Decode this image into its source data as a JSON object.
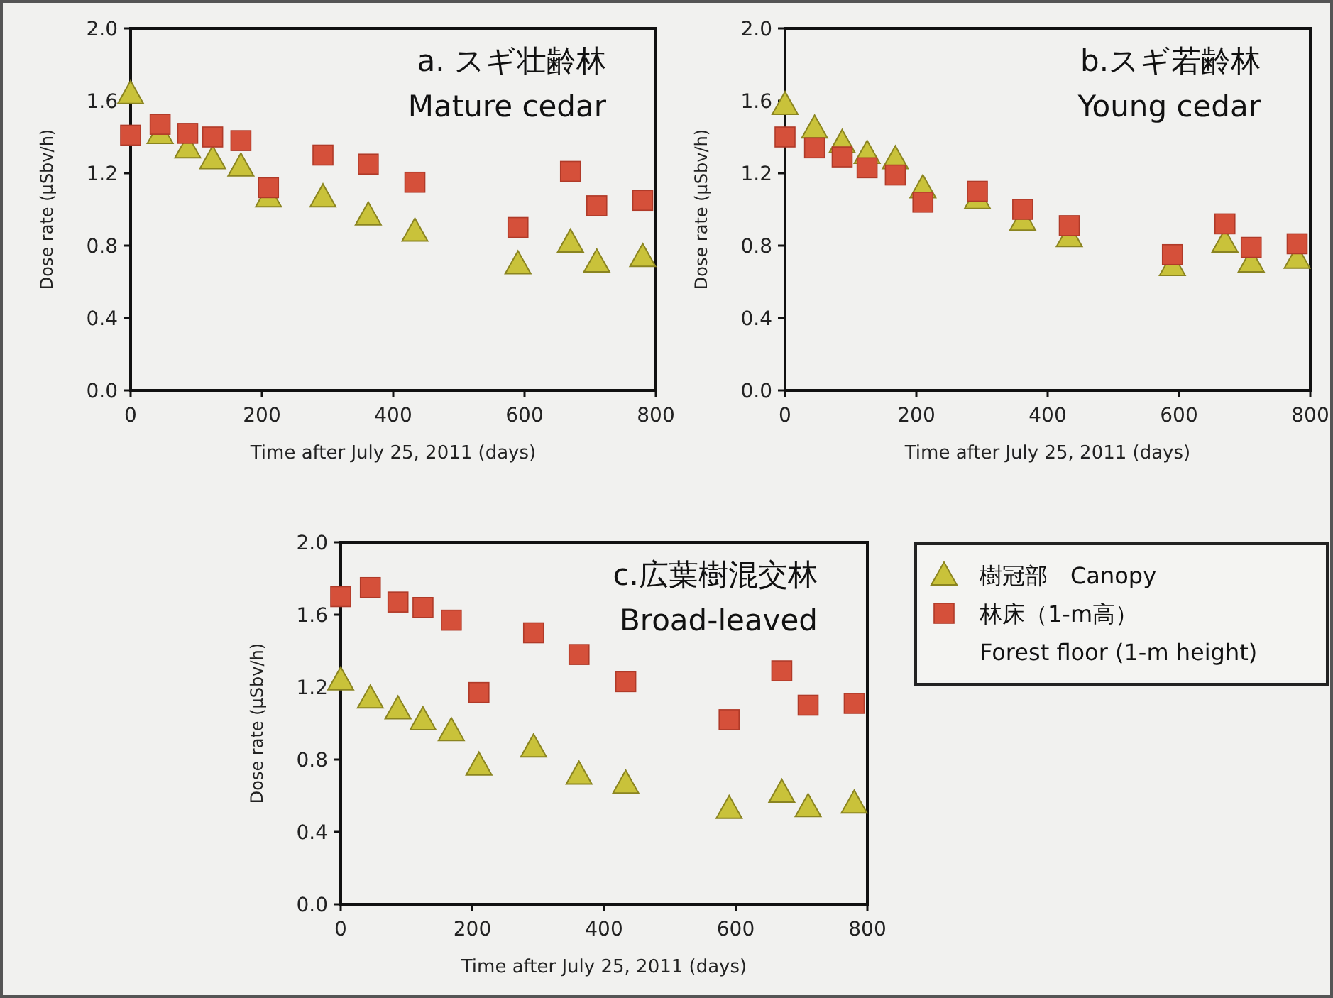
{
  "chart_data": [
    {
      "type": "scatter",
      "title": "a. スギ壮齢林",
      "subtitle": "Mature cedar",
      "xlabel": "Time after July 25, 2011 (days)",
      "ylabel": "Dose rate (µSbv/h)",
      "x": [
        0,
        45,
        87,
        125,
        168,
        210,
        293,
        362,
        433,
        590,
        670,
        710,
        780
      ],
      "xlim": [
        0,
        800
      ],
      "xticks": [
        0,
        200,
        400,
        600,
        800
      ],
      "ylim": [
        0,
        2.0
      ],
      "yticks": [
        {
          "value": 0,
          "label": "0.0"
        },
        {
          "value": 0.4,
          "label": "0.4"
        },
        {
          "value": 0.8,
          "label": "0.8"
        },
        {
          "value": 1.2,
          "label": "1.2"
        },
        {
          "value": 1.6,
          "label": "1.6"
        },
        {
          "value": 2.0,
          "label": "2.0"
        }
      ],
      "series": [
        {
          "color": "#c9c23a",
          "marker": "triangle",
          "values": [
            1.64,
            1.42,
            1.34,
            1.28,
            1.24,
            1.07,
            1.07,
            0.97,
            0.88,
            0.7,
            0.82,
            0.71,
            0.74
          ]
        },
        {
          "color": "#d5503a",
          "marker": "square",
          "values": [
            1.41,
            1.47,
            1.42,
            1.4,
            1.38,
            1.12,
            1.3,
            1.25,
            1.15,
            0.9,
            1.21,
            1.02,
            1.05
          ]
        }
      ]
    },
    {
      "type": "scatter",
      "title": "b.スギ若齢林",
      "subtitle": "Young cedar",
      "xlabel": "Time after July 25, 2011 (days)",
      "ylabel": "Dose rate (µSbv/h)",
      "x": [
        0,
        45,
        87,
        125,
        168,
        210,
        293,
        362,
        433,
        590,
        670,
        710,
        780
      ],
      "xlim": [
        0,
        800
      ],
      "xticks": [
        0,
        200,
        400,
        600,
        800
      ],
      "ylim": [
        0,
        2.0
      ],
      "yticks": [
        {
          "value": 0,
          "label": "0.0"
        },
        {
          "value": 0.4,
          "label": "0.4"
        },
        {
          "value": 0.8,
          "label": "0.8"
        },
        {
          "value": 1.2,
          "label": "1.2"
        },
        {
          "value": 1.6,
          "label": "1.6"
        },
        {
          "value": 2.0,
          "label": "2.0"
        }
      ],
      "series": [
        {
          "color": "#c9c23a",
          "marker": "triangle",
          "values": [
            1.58,
            1.45,
            1.37,
            1.31,
            1.28,
            1.12,
            1.06,
            0.94,
            0.85,
            0.69,
            0.82,
            0.71,
            0.73
          ]
        },
        {
          "color": "#d5503a",
          "marker": "square",
          "values": [
            1.4,
            1.34,
            1.29,
            1.23,
            1.19,
            1.04,
            1.1,
            1.0,
            0.91,
            0.75,
            0.92,
            0.79,
            0.81
          ]
        }
      ]
    },
    {
      "type": "scatter",
      "title": "c.広葉樹混交林",
      "subtitle": "Broad-leaved",
      "xlabel": "Time after July 25, 2011 (days)",
      "ylabel": "Dose rate (µSbv/h)",
      "x": [
        0,
        45,
        87,
        125,
        168,
        210,
        293,
        362,
        433,
        590,
        670,
        710,
        780
      ],
      "xlim": [
        0,
        800
      ],
      "xticks": [
        0,
        200,
        400,
        600,
        800
      ],
      "ylim": [
        0,
        2.0
      ],
      "yticks": [
        {
          "value": 0,
          "label": "0.0"
        },
        {
          "value": 0.4,
          "label": "0.4"
        },
        {
          "value": 0.8,
          "label": "0.8"
        },
        {
          "value": 1.2,
          "label": "1.2"
        },
        {
          "value": 1.6,
          "label": "1.6"
        },
        {
          "value": 2.0,
          "label": "2.0"
        }
      ],
      "legend": "right",
      "series": [
        {
          "name": "樹冠部　Canopy",
          "color": "#c9c23a",
          "marker": "triangle",
          "values": [
            1.24,
            1.14,
            1.08,
            1.02,
            0.96,
            0.77,
            0.87,
            0.72,
            0.67,
            0.53,
            0.62,
            0.54,
            0.56
          ]
        },
        {
          "name": "林床（1-m高）\nForest floor (1-m height)",
          "color": "#d5503a",
          "marker": "square",
          "values": [
            1.7,
            1.75,
            1.67,
            1.64,
            1.57,
            1.17,
            1.5,
            1.38,
            1.23,
            1.02,
            1.29,
            1.1,
            1.11
          ]
        }
      ]
    }
  ]
}
